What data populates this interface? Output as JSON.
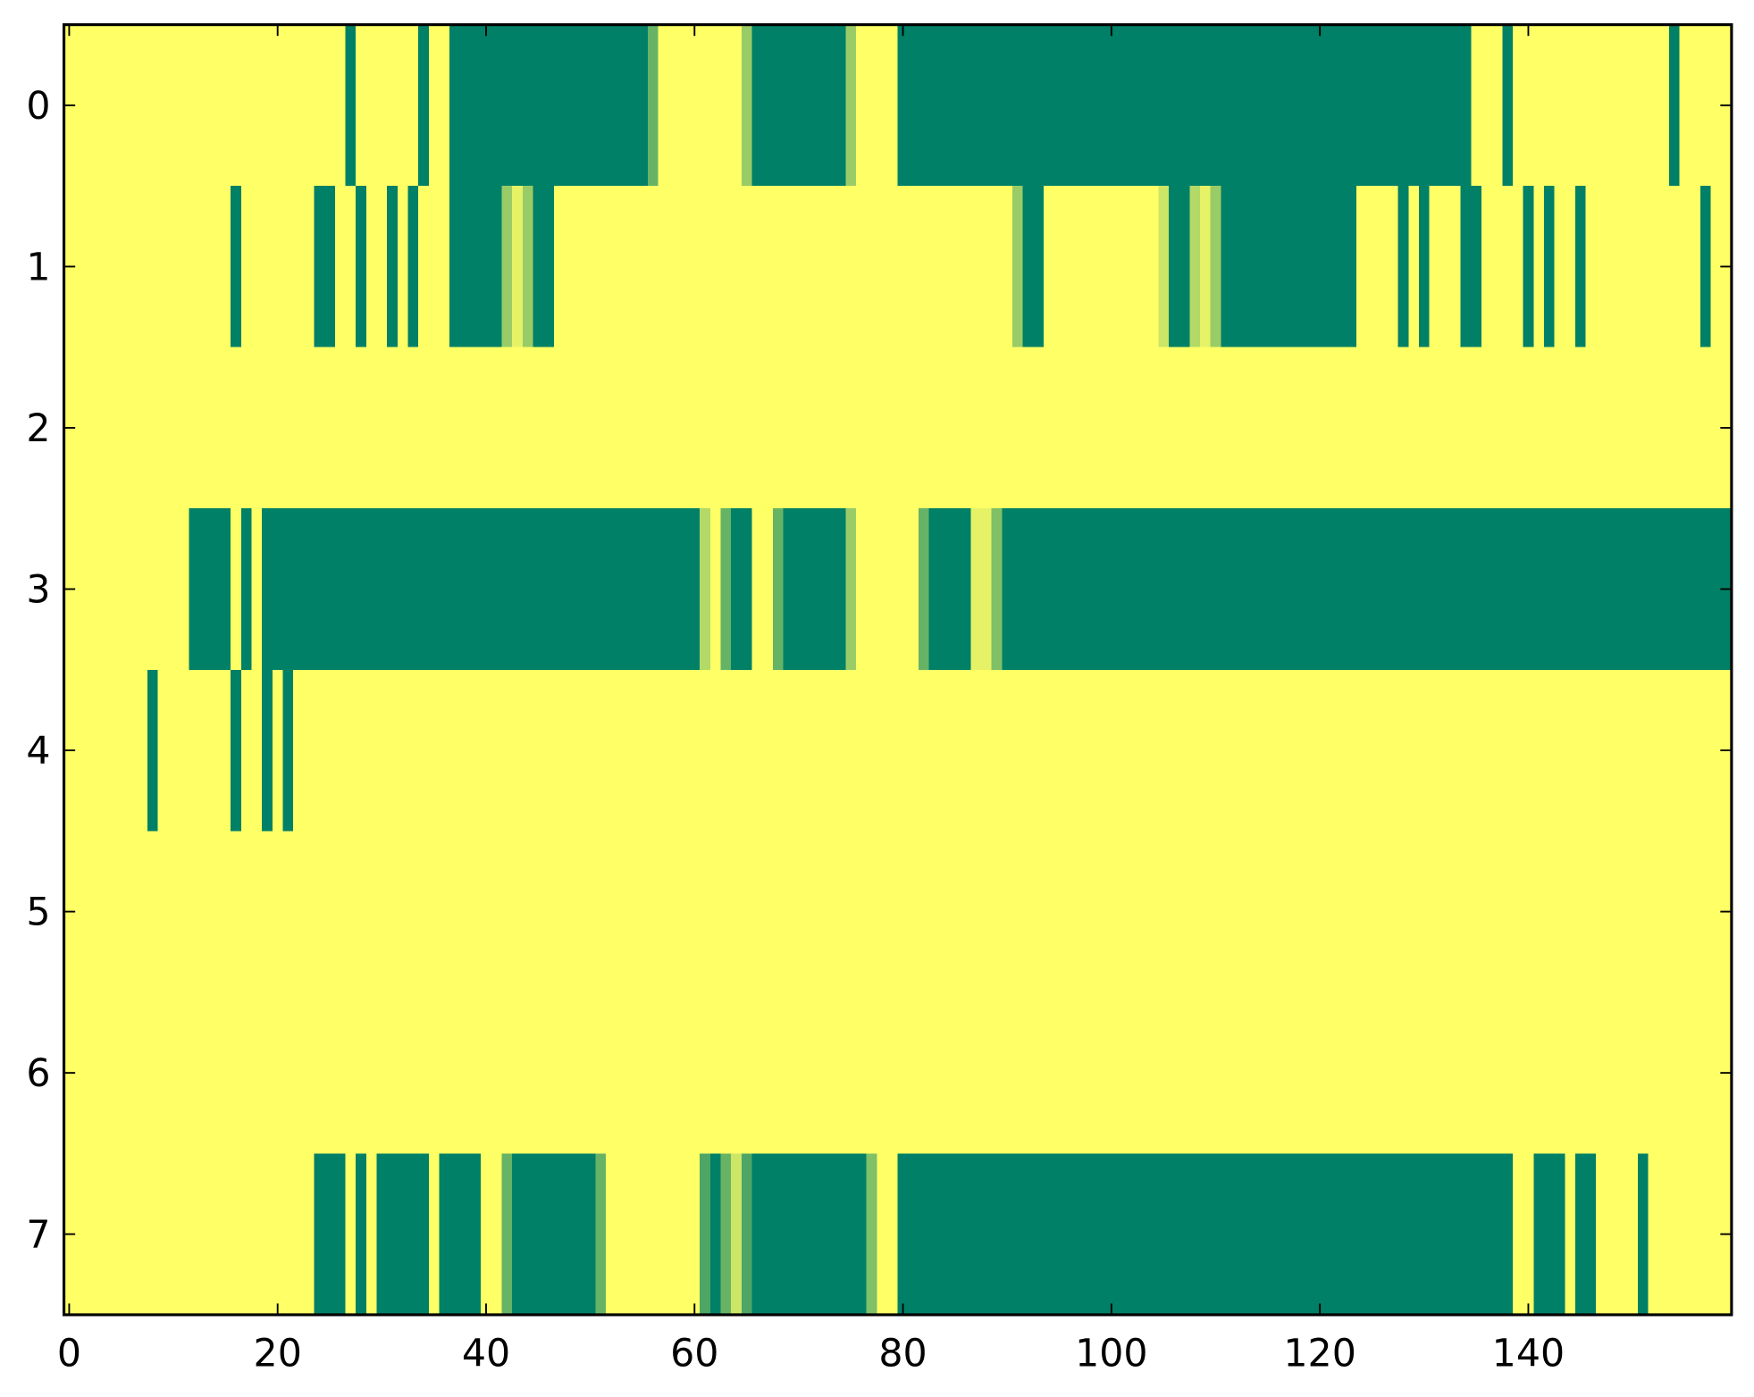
{
  "chart_data": {
    "type": "heatmap",
    "colorscale": [
      "#008066",
      "#ffff66"
    ],
    "zlim": [
      0,
      1
    ],
    "xlim": [
      -0.5,
      159.5
    ],
    "ylim": [
      7.5,
      -0.5
    ],
    "xticks": [
      0,
      20,
      40,
      60,
      80,
      100,
      120,
      140
    ],
    "yticks": [
      0,
      1,
      2,
      3,
      4,
      5,
      6,
      7
    ],
    "z": [
      [
        1,
        1,
        1,
        1,
        1,
        1,
        1,
        1,
        1,
        1,
        1,
        1,
        1,
        1,
        1,
        1,
        1,
        1,
        1,
        1,
        1,
        1,
        1,
        1,
        1,
        1,
        1,
        0,
        1,
        1,
        1,
        1,
        1,
        1,
        0,
        1,
        1,
        0,
        0,
        0,
        0,
        0,
        0,
        0,
        0,
        0,
        0,
        0,
        0,
        0,
        0,
        0,
        0,
        0,
        0,
        0,
        0.4,
        1,
        1,
        1,
        1,
        1,
        1,
        1,
        1,
        0.6,
        0,
        0,
        0,
        0,
        0,
        0,
        0,
        0,
        0,
        0.6,
        1,
        1,
        1,
        1,
        0,
        0,
        0,
        0,
        0,
        0,
        0,
        0,
        0,
        0,
        0,
        0,
        0,
        0,
        0,
        0,
        0,
        0,
        0,
        0,
        0,
        0,
        0,
        0,
        0,
        0,
        0,
        0,
        0,
        0,
        0,
        0,
        0,
        0,
        0,
        0,
        0,
        0,
        0,
        0,
        0,
        0,
        0,
        0,
        0,
        0,
        0,
        0,
        0,
        0,
        0,
        0,
        0,
        0,
        0,
        1,
        1,
        1,
        0,
        1,
        1,
        1,
        1,
        1,
        1,
        1,
        1,
        1,
        1,
        1,
        1,
        1,
        1,
        1,
        0,
        1,
        1,
        1,
        1,
        1
      ],
      [
        1,
        1,
        1,
        1,
        1,
        1,
        1,
        1,
        1,
        1,
        1,
        1,
        1,
        1,
        1,
        1,
        0,
        1,
        1,
        1,
        1,
        1,
        1,
        1,
        0,
        0,
        1,
        1,
        0,
        1,
        1,
        0,
        1,
        0,
        1,
        1,
        1,
        0,
        0,
        0,
        0,
        0,
        0.6,
        0.9,
        0.6,
        0,
        0,
        1,
        1,
        1,
        1,
        1,
        1,
        1,
        1,
        1,
        1,
        1,
        1,
        1,
        1,
        1,
        1,
        1,
        1,
        1,
        1,
        1,
        1,
        1,
        1,
        1,
        1,
        1,
        1,
        1,
        1,
        1,
        1,
        1,
        1,
        1,
        1,
        1,
        1,
        1,
        1,
        1,
        1,
        1,
        1,
        0.6,
        0,
        0,
        1,
        1,
        1,
        1,
        1,
        1,
        1,
        1,
        1,
        1,
        1,
        0.8,
        0,
        0,
        0.7,
        0.9,
        0.6,
        0,
        0,
        0,
        0,
        0,
        0,
        0,
        0,
        0,
        0,
        0,
        0,
        0,
        1,
        1,
        1,
        1,
        0,
        1,
        0,
        1,
        1,
        1,
        0,
        0,
        1,
        1,
        1,
        1,
        0,
        1,
        0,
        1,
        1,
        0,
        1,
        1,
        1,
        1,
        1,
        1,
        1,
        1,
        1,
        1,
        1,
        0,
        1,
        1
      ],
      [
        1,
        1,
        1,
        1,
        1,
        1,
        1,
        1,
        1,
        1,
        1,
        1,
        1,
        1,
        1,
        1,
        1,
        1,
        1,
        1,
        1,
        1,
        1,
        1,
        1,
        1,
        1,
        1,
        1,
        1,
        1,
        1,
        1,
        1,
        1,
        1,
        1,
        1,
        1,
        1,
        1,
        1,
        1,
        1,
        1,
        1,
        1,
        1,
        1,
        1,
        1,
        1,
        1,
        1,
        1,
        1,
        1,
        1,
        1,
        1,
        1,
        1,
        1,
        1,
        1,
        1,
        1,
        1,
        1,
        1,
        1,
        1,
        1,
        1,
        1,
        1,
        1,
        1,
        1,
        1,
        1,
        1,
        1,
        1,
        1,
        1,
        1,
        1,
        1,
        1,
        1,
        1,
        1,
        1,
        1,
        1,
        1,
        1,
        1,
        1,
        1,
        1,
        1,
        1,
        1,
        1,
        1,
        1,
        1,
        1,
        1,
        1,
        1,
        1,
        1,
        1,
        1,
        1,
        1,
        1,
        1,
        1,
        1,
        1,
        1,
        1,
        1,
        1,
        1,
        1,
        1,
        1,
        1,
        1,
        1,
        1,
        1,
        1,
        1,
        1,
        1,
        1,
        1,
        1,
        1,
        1,
        1,
        1,
        1,
        1,
        1,
        1,
        1,
        1,
        1,
        1,
        1,
        1,
        1,
        1
      ],
      [
        1,
        1,
        1,
        1,
        1,
        1,
        1,
        1,
        1,
        1,
        1,
        1,
        0,
        0,
        0,
        0,
        1,
        0,
        1,
        0,
        0,
        0,
        0,
        0,
        0,
        0,
        0,
        0,
        0,
        0,
        0,
        0,
        0,
        0,
        0,
        0,
        0,
        0,
        0,
        0,
        0,
        0,
        0,
        0,
        0,
        0,
        0,
        0,
        0,
        0,
        0,
        0,
        0,
        0,
        0,
        0,
        0,
        0,
        0,
        0,
        0,
        0.7,
        1,
        0.4,
        0,
        0,
        1,
        1,
        0.4,
        0,
        0,
        0,
        0,
        0,
        0,
        0.6,
        1,
        1,
        1,
        1,
        1,
        1,
        0.4,
        0,
        0,
        0,
        0,
        0.9,
        0.9,
        0.5,
        0,
        0,
        0,
        0,
        0,
        0,
        0,
        0,
        0,
        0,
        0,
        0,
        0,
        0,
        0,
        0,
        0,
        0,
        0,
        0,
        0,
        0,
        0,
        0,
        0,
        0,
        0,
        0,
        0,
        0,
        0,
        0,
        0,
        0,
        0,
        0,
        0,
        0,
        0,
        0,
        0,
        0,
        0,
        0,
        0,
        0,
        0,
        0,
        0,
        0,
        0,
        0,
        0,
        0,
        0,
        0,
        0,
        0,
        0,
        0,
        0,
        0,
        0,
        0,
        0,
        0,
        0,
        0,
        0,
        0
      ],
      [
        1,
        1,
        1,
        1,
        1,
        1,
        1,
        1,
        0,
        1,
        1,
        1,
        1,
        1,
        1,
        1,
        0,
        1,
        1,
        0,
        1,
        0,
        1,
        1,
        1,
        1,
        1,
        1,
        1,
        1,
        1,
        1,
        1,
        1,
        1,
        1,
        1,
        1,
        1,
        1,
        1,
        1,
        1,
        1,
        1,
        1,
        1,
        1,
        1,
        1,
        1,
        1,
        1,
        1,
        1,
        1,
        1,
        1,
        1,
        1,
        1,
        1,
        1,
        1,
        1,
        1,
        1,
        1,
        1,
        1,
        1,
        1,
        1,
        1,
        1,
        1,
        1,
        1,
        1,
        1,
        1,
        1,
        1,
        1,
        1,
        1,
        1,
        1,
        1,
        1,
        1,
        1,
        1,
        1,
        1,
        1,
        1,
        1,
        1,
        1,
        1,
        1,
        1,
        1,
        1,
        1,
        1,
        1,
        1,
        1,
        1,
        1,
        1,
        1,
        1,
        1,
        1,
        1,
        1,
        1,
        1,
        1,
        1,
        1,
        1,
        1,
        1,
        1,
        1,
        1,
        1,
        1,
        1,
        1,
        1,
        1,
        1,
        1,
        1,
        1,
        1,
        1,
        1,
        1,
        1,
        1,
        1,
        1,
        1,
        1,
        1,
        1,
        1,
        1,
        1,
        1,
        1,
        1,
        1,
        1
      ],
      [
        1,
        1,
        1,
        1,
        1,
        1,
        1,
        1,
        1,
        1,
        1,
        1,
        1,
        1,
        1,
        1,
        1,
        1,
        1,
        1,
        1,
        1,
        1,
        1,
        1,
        1,
        1,
        1,
        1,
        1,
        1,
        1,
        1,
        1,
        1,
        1,
        1,
        1,
        1,
        1,
        1,
        1,
        1,
        1,
        1,
        1,
        1,
        1,
        1,
        1,
        1,
        1,
        1,
        1,
        1,
        1,
        1,
        1,
        1,
        1,
        1,
        1,
        1,
        1,
        1,
        1,
        1,
        1,
        1,
        1,
        1,
        1,
        1,
        1,
        1,
        1,
        1,
        1,
        1,
        1,
        1,
        1,
        1,
        1,
        1,
        1,
        1,
        1,
        1,
        1,
        1,
        1,
        1,
        1,
        1,
        1,
        1,
        1,
        1,
        1,
        1,
        1,
        1,
        1,
        1,
        1,
        1,
        1,
        1,
        1,
        1,
        1,
        1,
        1,
        1,
        1,
        1,
        1,
        1,
        1,
        1,
        1,
        1,
        1,
        1,
        1,
        1,
        1,
        1,
        1,
        1,
        1,
        1,
        1,
        1,
        1,
        1,
        1,
        1,
        1,
        1,
        1,
        1,
        1,
        1,
        1,
        1,
        1,
        1,
        1,
        1,
        1,
        1,
        1,
        1,
        1,
        1,
        1,
        1,
        1
      ],
      [
        1,
        1,
        1,
        1,
        1,
        1,
        1,
        1,
        1,
        1,
        1,
        1,
        1,
        1,
        1,
        1,
        1,
        1,
        1,
        1,
        1,
        1,
        1,
        1,
        1,
        1,
        1,
        1,
        1,
        1,
        1,
        1,
        1,
        1,
        1,
        1,
        1,
        1,
        1,
        1,
        1,
        1,
        1,
        1,
        1,
        1,
        1,
        1,
        1,
        1,
        1,
        1,
        1,
        1,
        1,
        1,
        1,
        1,
        1,
        1,
        1,
        1,
        1,
        1,
        1,
        1,
        1,
        1,
        1,
        1,
        1,
        1,
        1,
        1,
        1,
        1,
        1,
        1,
        1,
        1,
        1,
        1,
        1,
        1,
        1,
        1,
        1,
        1,
        1,
        1,
        1,
        1,
        1,
        1,
        1,
        1,
        1,
        1,
        1,
        1,
        1,
        1,
        1,
        1,
        1,
        1,
        1,
        1,
        1,
        1,
        1,
        1,
        1,
        1,
        1,
        1,
        1,
        1,
        1,
        1,
        1,
        1,
        1,
        1,
        1,
        1,
        1,
        1,
        1,
        1,
        1,
        1,
        1,
        1,
        1,
        1,
        1,
        1,
        1,
        1,
        1,
        1,
        1,
        1,
        1,
        1,
        1,
        1,
        1,
        1,
        1,
        1,
        1,
        1,
        1,
        1,
        1,
        1,
        1,
        1
      ],
      [
        1,
        1,
        1,
        1,
        1,
        1,
        1,
        1,
        1,
        1,
        1,
        1,
        1,
        1,
        1,
        1,
        1,
        1,
        1,
        1,
        1,
        1,
        1,
        1,
        0,
        0,
        0,
        1,
        0,
        1,
        0,
        0,
        0,
        0,
        0,
        1,
        0,
        0,
        0,
        0,
        1,
        1,
        0.4,
        0,
        0,
        0,
        0,
        0,
        0,
        0,
        0,
        0.4,
        1,
        1,
        1,
        1,
        1,
        1,
        1,
        1,
        1,
        0.3,
        0,
        0.4,
        0.8,
        0.3,
        0,
        0,
        0,
        0,
        0,
        0,
        0,
        0,
        0,
        0,
        0,
        0.5,
        1,
        1,
        0,
        0,
        0,
        0,
        0,
        0,
        0,
        0,
        0,
        0,
        0,
        0,
        0,
        0,
        0,
        0,
        0,
        0,
        0,
        0,
        0,
        0,
        0,
        0,
        0,
        0,
        0,
        0,
        0,
        0,
        0,
        0,
        0,
        0,
        0,
        0,
        0,
        0,
        0,
        0,
        0,
        0,
        0,
        0,
        0,
        0,
        0,
        0,
        0,
        0,
        0,
        0,
        0,
        0,
        0,
        0,
        0,
        0,
        0,
        1,
        1,
        0,
        0,
        0,
        1,
        0,
        0,
        1,
        1,
        1,
        1,
        0,
        1,
        1,
        1,
        1,
        1,
        1,
        1,
        1
      ]
    ]
  }
}
